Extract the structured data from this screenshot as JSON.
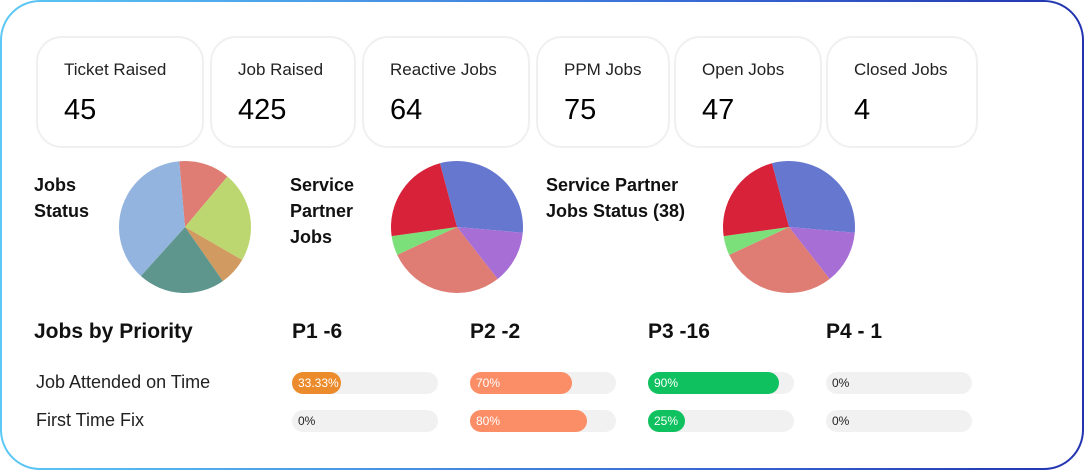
{
  "stats": [
    {
      "label": "Ticket Raised",
      "value": "45"
    },
    {
      "label": "Job Raised",
      "value": "425"
    },
    {
      "label": "Reactive Jobs",
      "value": "64"
    },
    {
      "label": "PPM Jobs",
      "value": "75"
    },
    {
      "label": "Open Jobs",
      "value": "47"
    },
    {
      "label": "Closed Jobs",
      "value": "4"
    }
  ],
  "pies": [
    {
      "title_lines": [
        "Jobs",
        "Status"
      ],
      "start_deg": -5,
      "slices": [
        {
          "value": 45,
          "color": "#df7c73"
        },
        {
          "value": 80,
          "color": "#bdd770"
        },
        {
          "value": 25,
          "color": "#d09a60"
        },
        {
          "value": 77,
          "color": "#5e968e"
        },
        {
          "value": 133,
          "color": "#93b4de"
        }
      ]
    },
    {
      "title_lines": [
        "Service",
        "Partner",
        "Jobs"
      ],
      "start_deg": -15,
      "slices": [
        {
          "value": 110,
          "color": "#6677cf"
        },
        {
          "value": 47,
          "color": "#a76fd6"
        },
        {
          "value": 103,
          "color": "#df7c73"
        },
        {
          "value": 17,
          "color": "#7ce07a"
        },
        {
          "value": 83,
          "color": "#d8223a"
        }
      ]
    },
    {
      "title_lines": [
        "Service Partner",
        "Jobs Status (38)"
      ],
      "start_deg": -15,
      "slices": [
        {
          "value": 110,
          "color": "#6677cf"
        },
        {
          "value": 47,
          "color": "#a76fd6"
        },
        {
          "value": 103,
          "color": "#df7c73"
        },
        {
          "value": 17,
          "color": "#7ce07a"
        },
        {
          "value": 83,
          "color": "#d8223a"
        }
      ]
    }
  ],
  "priority": {
    "title": "Jobs by Priority",
    "rows": [
      "Job Attended on Time",
      "First Time Fix"
    ],
    "columns": [
      {
        "label": "P1 -6",
        "color": "#ec8b2b",
        "values": [
          {
            "pct": 33.33,
            "text": "33.33%"
          },
          {
            "pct": 0,
            "text": "0%"
          }
        ]
      },
      {
        "label": "P2 -2",
        "color": "#fb8e66",
        "values": [
          {
            "pct": 70,
            "text": "70%"
          },
          {
            "pct": 80,
            "text": "80%"
          }
        ]
      },
      {
        "label": "P3 -16",
        "color": "#0fc15f",
        "values": [
          {
            "pct": 90,
            "text": "90%"
          },
          {
            "pct": 25,
            "text": "25%"
          }
        ]
      },
      {
        "label": "P4 - 1",
        "color": "#cccccc",
        "values": [
          {
            "pct": 0,
            "text": "0%"
          },
          {
            "pct": 0,
            "text": "0%"
          }
        ]
      }
    ]
  }
}
